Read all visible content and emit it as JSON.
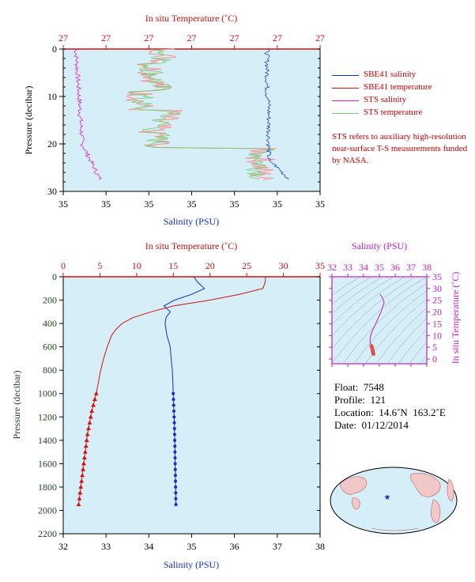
{
  "colors": {
    "plot_bg": "#d5eef8",
    "temperature": "#d41010",
    "salinity": "#1030c0",
    "sts_salinity": "#e020d0",
    "sts_temperature": "#70d070",
    "sts_temperature_fill": "#f0a0a0",
    "magenta_axis": "#c020c0",
    "depth_axis": "#224422"
  },
  "chart_data": [
    {
      "id": "near_surface",
      "type": "line",
      "title": "",
      "top_axis_label": "In situ Temperature (˚C)",
      "top_tick_labels": [
        "27",
        "27",
        "27",
        "27",
        "27",
        "27",
        "27"
      ],
      "bottom_axis_label": "Salinity (PSU)",
      "bottom_tick_labels": [
        "35",
        "35",
        "35",
        "35",
        "35",
        "35",
        "35"
      ],
      "ylabel": "Pressure (decibar)",
      "yticks": [
        0,
        10,
        20,
        30
      ],
      "ylim": [
        0,
        30
      ],
      "legend": [
        "SBE41 salinity",
        "SBE41 temperature",
        "STS salinity",
        "STS temperature"
      ],
      "note": "STS refers to auxiliary high-resolution near-surface T-S measurements funded by NASA."
    },
    {
      "id": "full_profile",
      "type": "line",
      "top_axis_label": "In situ Temperature (˚C)",
      "top_ticks": [
        0,
        5,
        10,
        15,
        20,
        25,
        30,
        35
      ],
      "bottom_axis_label": "Salinity (PSU)",
      "bottom_ticks": [
        32,
        33,
        34,
        35,
        36,
        37,
        38
      ],
      "ylabel": "Pressure (decibar)",
      "yticks": [
        0,
        200,
        400,
        600,
        800,
        1000,
        1200,
        1400,
        1600,
        1800,
        2000,
        2200
      ],
      "ylim": [
        0,
        2200
      ],
      "temperature_profile": {
        "pressure": [
          0,
          50,
          100,
          150,
          200,
          250,
          300,
          350,
          400,
          450,
          500,
          600,
          700,
          800,
          900,
          1000
        ],
        "values": [
          27.6,
          27.5,
          27.2,
          24.0,
          20.0,
          15.0,
          12.0,
          9.5,
          8.0,
          7.2,
          6.6,
          6.0,
          5.5,
          5.1,
          4.8,
          4.5
        ]
      },
      "salinity_profile": {
        "pressure": [
          0,
          50,
          100,
          150,
          200,
          250,
          300,
          350,
          400,
          500,
          600,
          700,
          800,
          900,
          1000
        ],
        "values": [
          35.05,
          35.15,
          35.3,
          35.0,
          34.6,
          34.35,
          34.5,
          34.4,
          34.38,
          34.42,
          34.5,
          34.52,
          34.55,
          34.56,
          34.57
        ]
      },
      "temperature_deep_points": {
        "pressure": [
          1000,
          1050,
          1100,
          1150,
          1200,
          1250,
          1300,
          1350,
          1400,
          1450,
          1500,
          1550,
          1600,
          1650,
          1700,
          1750,
          1800,
          1850,
          1900,
          1950
        ],
        "values": [
          4.5,
          4.3,
          4.1,
          3.9,
          3.75,
          3.6,
          3.45,
          3.3,
          3.2,
          3.1,
          3.0,
          2.9,
          2.8,
          2.7,
          2.6,
          2.5,
          2.4,
          2.3,
          2.2,
          2.1
        ]
      },
      "salinity_deep_points": {
        "pressure": [
          1000,
          1050,
          1100,
          1150,
          1200,
          1250,
          1300,
          1350,
          1400,
          1450,
          1500,
          1550,
          1600,
          1650,
          1700,
          1750,
          1800,
          1850,
          1900,
          1950
        ],
        "values": [
          34.57,
          34.575,
          34.58,
          34.585,
          34.59,
          34.595,
          34.6,
          34.602,
          34.605,
          34.608,
          34.61,
          34.612,
          34.615,
          34.618,
          34.62,
          34.622,
          34.625,
          34.628,
          34.63,
          34.632
        ]
      }
    },
    {
      "id": "ts_diagram",
      "type": "scatter",
      "top_axis_label": "Salinity (PSU)",
      "top_ticks": [
        32,
        33,
        34,
        35,
        36,
        37,
        38
      ],
      "right_axis_label": "In situ Temperature (˚C)",
      "right_ticks": [
        0,
        5,
        10,
        15,
        20,
        25,
        30,
        35
      ],
      "xlim": [
        32,
        38
      ],
      "ylim": [
        -2,
        35
      ],
      "ts_curve": {
        "salinity": [
          35.05,
          35.2,
          35.3,
          35.1,
          34.9,
          34.7,
          34.55,
          34.45,
          34.4,
          34.45,
          34.5,
          34.55,
          34.58,
          34.6,
          34.62
        ],
        "temperature": [
          27.6,
          26,
          24,
          20,
          17,
          14,
          12,
          10,
          8,
          6.5,
          5.5,
          4.5,
          3.5,
          2.8,
          2.2
        ]
      }
    }
  ],
  "float_info": {
    "float": "Float:  7548",
    "profile": "Profile:  121",
    "location": "Location:  14.6˚N  163.2˚E",
    "date": "Date:  01/12/2014"
  },
  "map": {
    "location_marker": "star-icon"
  }
}
